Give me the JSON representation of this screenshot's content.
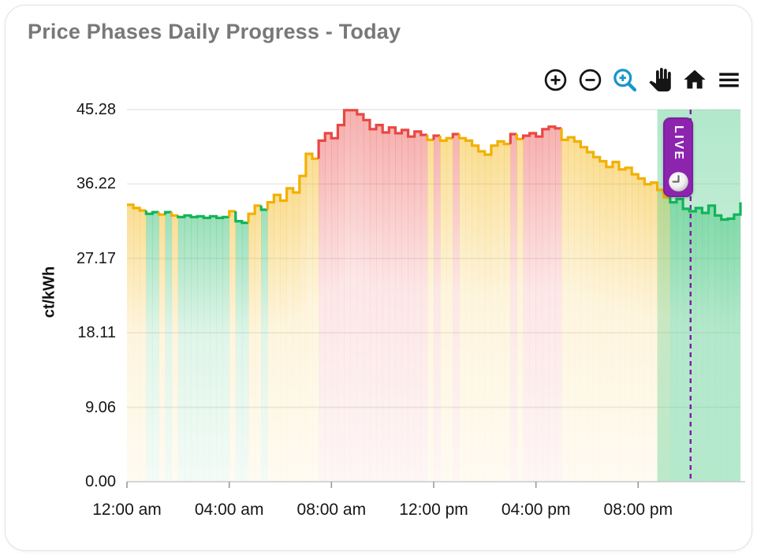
{
  "card": {
    "title": "Price Phases Daily Progress - Today"
  },
  "toolbar": {
    "buttons": [
      {
        "id": "zoom-in",
        "icon": "circle-plus-icon",
        "color": "#151515"
      },
      {
        "id": "zoom-out",
        "icon": "circle-minus-icon",
        "color": "#151515"
      },
      {
        "id": "box-zoom",
        "icon": "magnifier-plus-icon",
        "color": "#1a95cc",
        "active": true
      },
      {
        "id": "pan",
        "icon": "hand-icon",
        "color": "#151515"
      },
      {
        "id": "reset",
        "icon": "home-icon",
        "color": "#151515"
      },
      {
        "id": "menu",
        "icon": "hamburger-icon",
        "color": "#151515"
      }
    ]
  },
  "live_badge": {
    "label": "LIVE",
    "background": "#8d24ad",
    "border": "#7b1fa2",
    "icon": "clock-icon"
  },
  "chart_data": {
    "type": "area",
    "title": "Price Phases Daily Progress - Today",
    "xlabel": "",
    "ylabel": "ct/kWh",
    "ylim": [
      0,
      45.28
    ],
    "grid": "horizontal",
    "interval_minutes": 15,
    "yticks": [
      {
        "value": 0,
        "label": "0.00"
      },
      {
        "value": 9.06,
        "label": "9.06"
      },
      {
        "value": 18.11,
        "label": "18.11"
      },
      {
        "value": 27.17,
        "label": "27.17"
      },
      {
        "value": 36.22,
        "label": "36.22"
      },
      {
        "value": 45.28,
        "label": "45.28"
      }
    ],
    "xticks": [
      {
        "hour": 0,
        "label": "12:00 am"
      },
      {
        "hour": 4,
        "label": "04:00 am"
      },
      {
        "hour": 8,
        "label": "08:00 am"
      },
      {
        "hour": 12,
        "label": "12:00 pm"
      },
      {
        "hour": 16,
        "label": "04:00 pm"
      },
      {
        "hour": 20,
        "label": "08:00 pm"
      }
    ],
    "phase_colors": {
      "g": "#12b45a",
      "y": "#f2b000",
      "r": "#e94743"
    },
    "series": [
      {
        "name": "price_ct_per_kwh",
        "values": [
          33.7,
          33.3,
          33.0,
          32.6,
          32.8,
          32.5,
          32.8,
          32.4,
          32.2,
          32.4,
          32.2,
          32.3,
          32.1,
          32.3,
          32.1,
          32.2,
          32.9,
          31.7,
          31.5,
          32.6,
          33.6,
          33.1,
          34.0,
          34.9,
          34.2,
          35.7,
          35.2,
          37.2,
          39.9,
          39.3,
          41.5,
          42.4,
          41.8,
          43.4,
          45.2,
          45.2,
          44.7,
          44.0,
          42.9,
          43.4,
          42.5,
          43.1,
          42.4,
          42.8,
          42.0,
          42.6,
          42.2,
          41.6,
          42.1,
          41.5,
          41.8,
          42.3,
          41.8,
          41.5,
          40.9,
          40.2,
          39.8,
          40.9,
          41.4,
          41.1,
          42.3,
          41.7,
          42.1,
          42.4,
          42.0,
          42.9,
          43.2,
          43.0,
          41.6,
          41.9,
          41.4,
          40.7,
          40.1,
          39.5,
          39.0,
          38.3,
          38.9,
          38.0,
          38.2,
          37.4,
          36.9,
          36.2,
          36.4,
          35.5,
          34.6,
          34.0,
          34.4,
          33.2,
          32.9,
          33.3,
          32.7,
          33.6,
          32.4,
          31.9,
          32.0,
          32.5
        ],
        "phases": "yyyggygyggggggggyggyygyyyyyyyyrrrrrrrrrrrrrrrrryryyryyyyyyyyryrrrrrryyyyyyyyyyyyyyyyyggggggggggg"
      }
    ],
    "end_value": 34.0,
    "now_hour": 22.05,
    "now_line_color": "#7b1fa2",
    "forecast_green_window": {
      "start_hour": 20.75,
      "end_hour": 24,
      "color": "#5fcf92"
    }
  }
}
